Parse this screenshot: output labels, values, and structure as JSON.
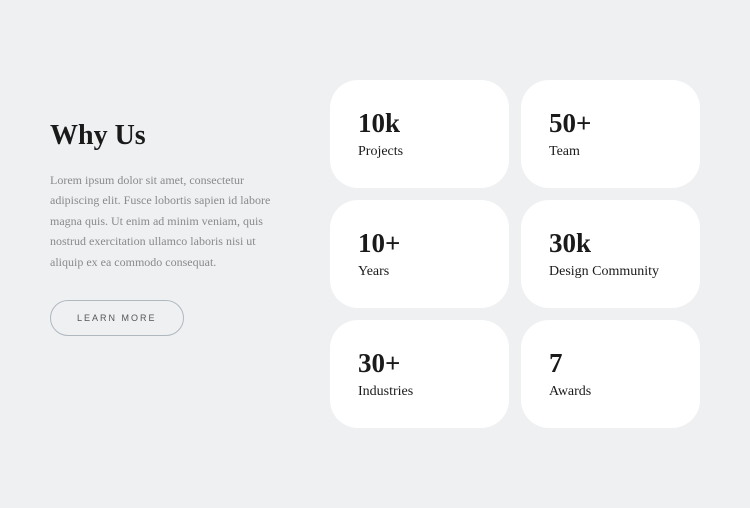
{
  "heading": "Why Us",
  "description": "Lorem ipsum dolor sit amet, consectetur adipiscing elit. Fusce lobortis sapien id labore magna quis. Ut enim ad minim veniam, quis nostrud exercitation ullamco laboris nisi ut aliquip ex ea commodo consequat.",
  "button_label": "LEARN MORE",
  "stats": [
    {
      "value": "10k",
      "label": "Projects"
    },
    {
      "value": "50+",
      "label": "Team"
    },
    {
      "value": "10+",
      "label": "Years"
    },
    {
      "value": "30k",
      "label": "Design Community"
    },
    {
      "value": "30+",
      "label": "Industries"
    },
    {
      "value": "7",
      "label": "Awards"
    }
  ],
  "colors": {
    "page_bg": "#eef0f2",
    "card_bg": "#ffffff",
    "text_primary": "#1a1a1a",
    "text_muted": "#8a8a8a",
    "button_border": "#b0b8bf"
  }
}
